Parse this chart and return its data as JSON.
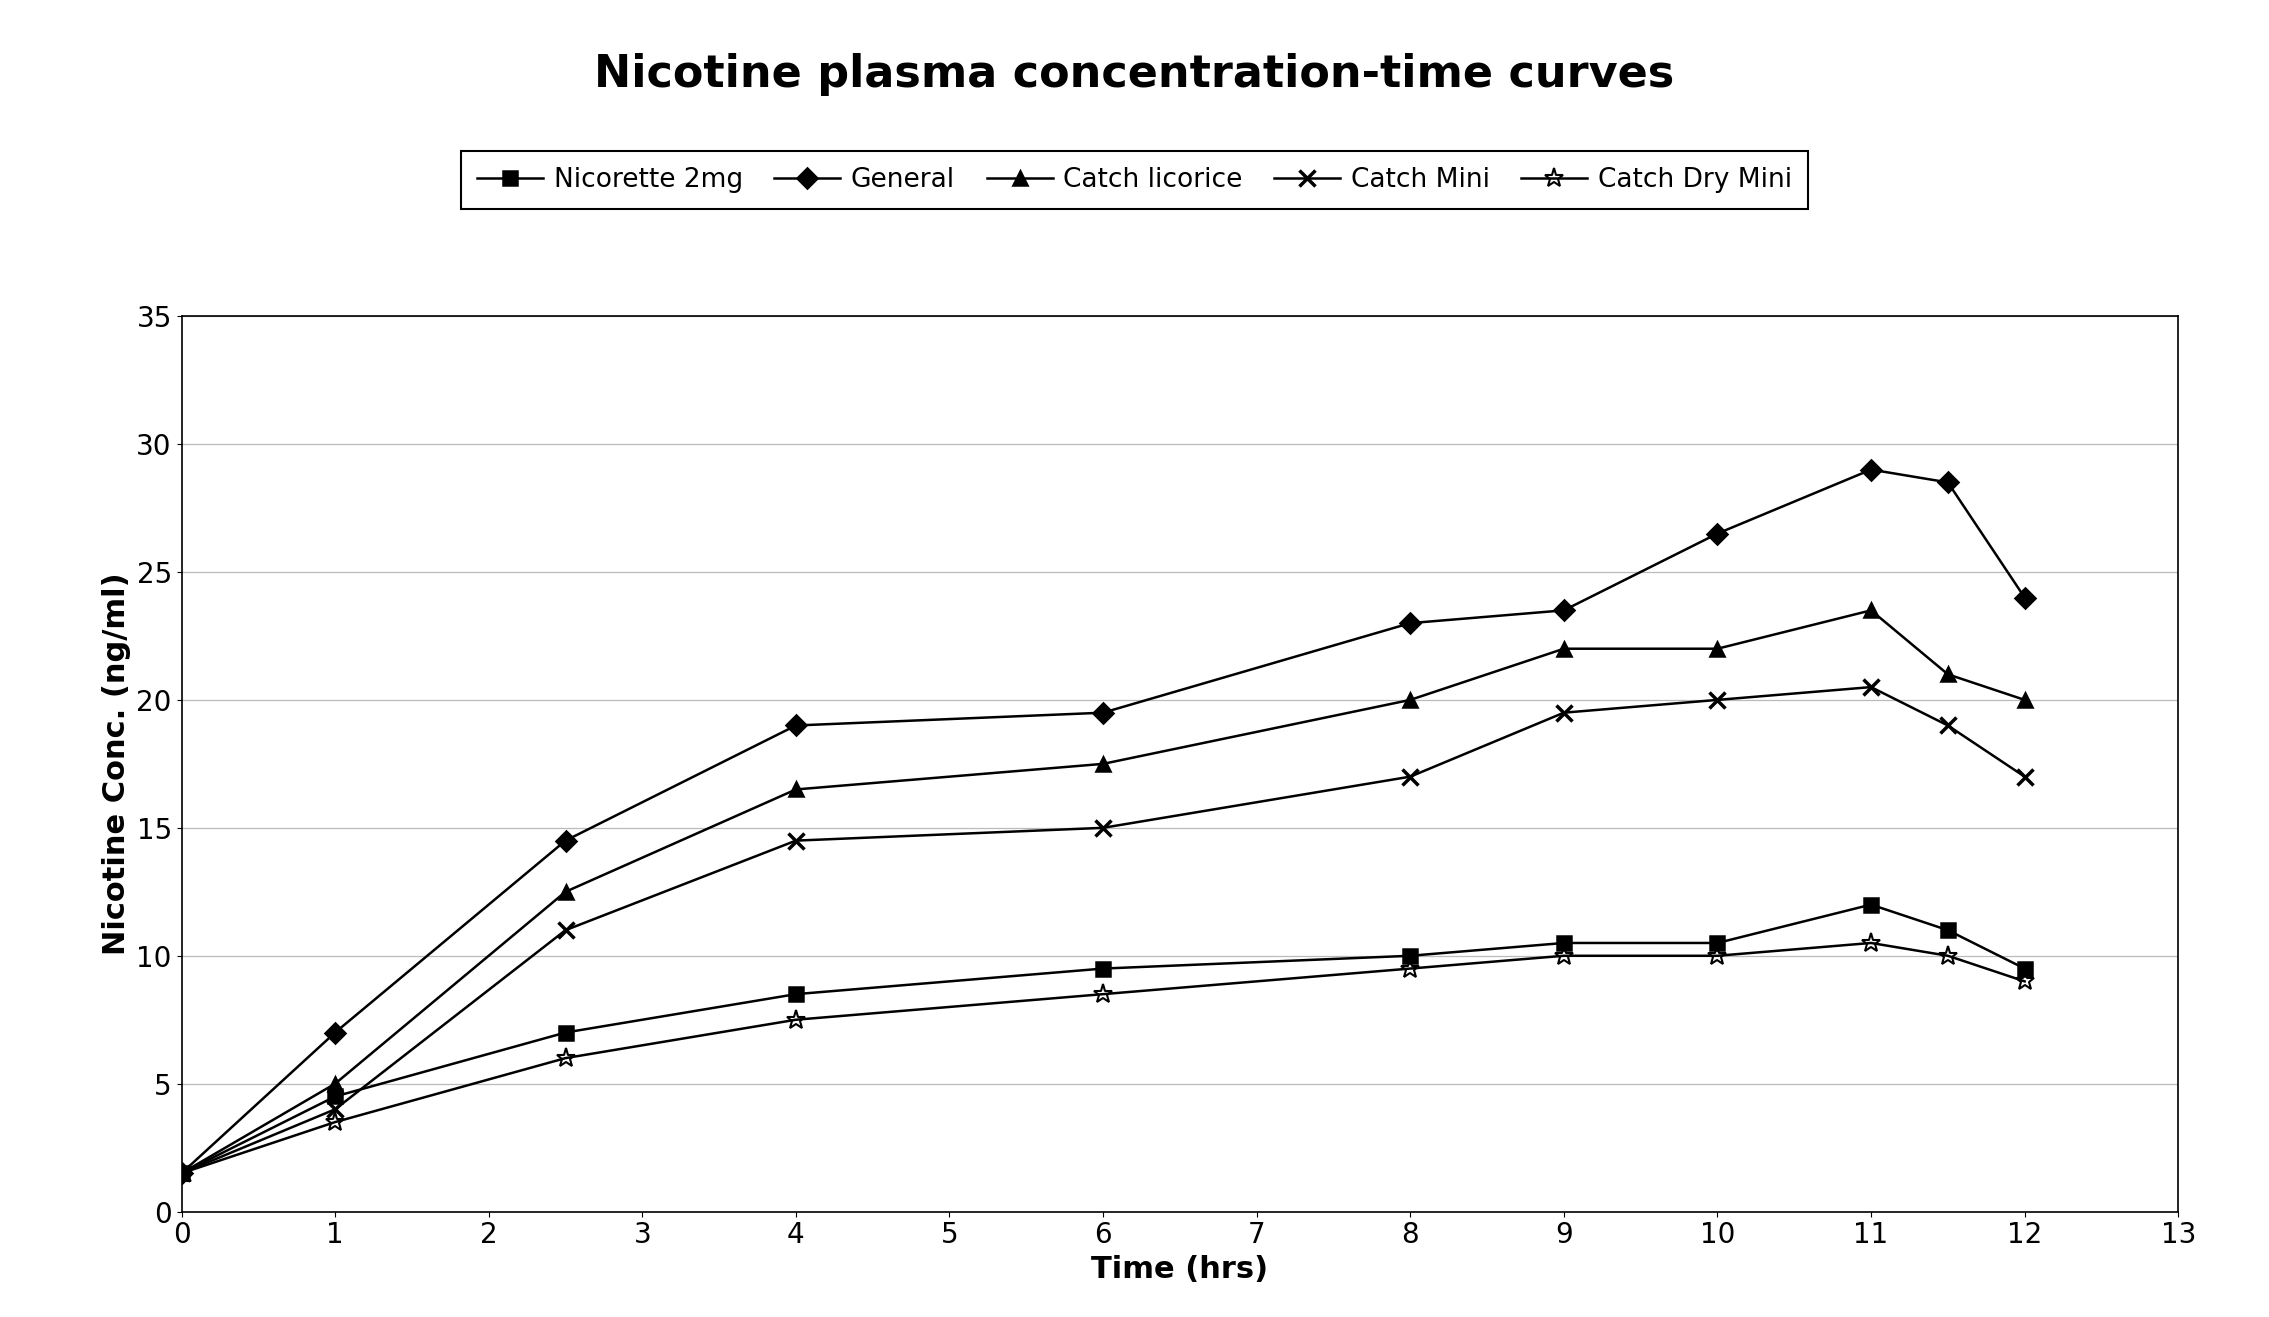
{
  "title": "Nicotine plasma concentration-time curves",
  "xlabel": "Time (hrs)",
  "ylabel": "Nicotine Conc. (ng/ml)",
  "xlim": [
    0,
    13
  ],
  "ylim": [
    0,
    35
  ],
  "xticks": [
    0,
    1,
    2,
    3,
    4,
    5,
    6,
    7,
    8,
    9,
    10,
    11,
    12,
    13
  ],
  "yticks": [
    0,
    5,
    10,
    15,
    20,
    25,
    30,
    35
  ],
  "series": [
    {
      "label": "Nicorette 2mg",
      "x": [
        0,
        1,
        2.5,
        4,
        6,
        8,
        9,
        10,
        11,
        11.5,
        12
      ],
      "y": [
        1.5,
        4.5,
        7.0,
        8.5,
        9.5,
        10.0,
        10.5,
        10.5,
        12.0,
        11.0,
        9.5
      ],
      "marker": "s",
      "color": "#000000",
      "linewidth": 1.8,
      "markersize": 10
    },
    {
      "label": "General",
      "x": [
        0,
        1,
        2.5,
        4,
        6,
        8,
        9,
        10,
        11,
        11.5,
        12
      ],
      "y": [
        1.5,
        7.0,
        14.5,
        19.0,
        19.5,
        23.0,
        23.5,
        26.5,
        29.0,
        28.5,
        24.0
      ],
      "marker": "D",
      "color": "#000000",
      "linewidth": 1.8,
      "markersize": 10
    },
    {
      "label": "Catch licorice",
      "x": [
        0,
        1,
        2.5,
        4,
        6,
        8,
        9,
        10,
        11,
        11.5,
        12
      ],
      "y": [
        1.5,
        5.0,
        12.5,
        16.5,
        17.5,
        20.0,
        22.0,
        22.0,
        23.5,
        21.0,
        20.0
      ],
      "marker": "^",
      "color": "#000000",
      "linewidth": 1.8,
      "markersize": 10
    },
    {
      "label": "Catch Mini",
      "x": [
        0,
        1,
        2.5,
        4,
        6,
        8,
        9,
        10,
        11,
        11.5,
        12
      ],
      "y": [
        1.5,
        4.0,
        11.0,
        14.5,
        15.0,
        17.0,
        19.5,
        20.0,
        20.5,
        19.0,
        17.0
      ],
      "marker": "x",
      "color": "#000000",
      "linewidth": 1.8,
      "markersize": 12,
      "markeredgewidth": 2.5
    },
    {
      "label": "Catch Dry Mini",
      "x": [
        0,
        1,
        2.5,
        4,
        6,
        8,
        9,
        10,
        11,
        11.5,
        12
      ],
      "y": [
        1.5,
        3.5,
        6.0,
        7.5,
        8.5,
        9.5,
        10.0,
        10.0,
        10.5,
        10.0,
        9.0
      ],
      "marker": "*",
      "color": "#000000",
      "linewidth": 1.8,
      "markersize": 14,
      "markeredgewidth": 1.5
    }
  ],
  "background_color": "#ffffff",
  "title_fontsize": 32,
  "axis_label_fontsize": 22,
  "tick_fontsize": 20,
  "legend_fontsize": 19
}
